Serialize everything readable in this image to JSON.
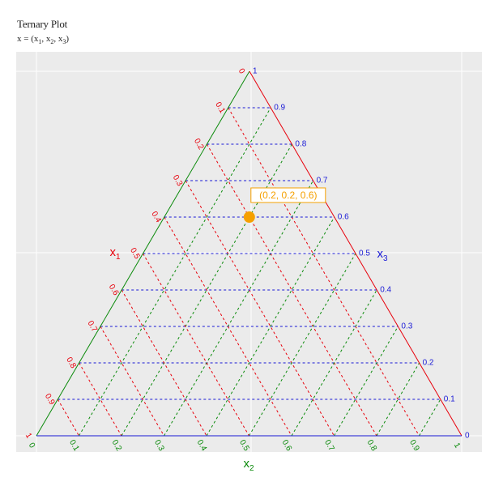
{
  "title": "Ternary Plot",
  "subtitle": "x = (x₁, x₂, x₃)",
  "chart_data": {
    "type": "ternary-scatter",
    "axes": {
      "x1": {
        "label": "x1",
        "color": "#e8000b"
      },
      "x2": {
        "label": "x2",
        "color": "#0a8a0a"
      },
      "x3": {
        "label": "x3",
        "color": "#1a1ad6"
      }
    },
    "ticks": {
      "x1": [
        "0",
        "0.1",
        "0.2",
        "0.3",
        "0.4",
        "0.5",
        "0.6",
        "0.7",
        "0.8",
        "0.9",
        "1"
      ],
      "x2": [
        "0",
        "0.1",
        "0.2",
        "0.3",
        "0.4",
        "0.5",
        "0.6",
        "0.7",
        "0.8",
        "0.9",
        "1"
      ],
      "x3": [
        "0",
        "0.1",
        "0.2",
        "0.3",
        "0.4",
        "0.5",
        "0.6",
        "0.7",
        "0.8",
        "0.9",
        "1"
      ]
    },
    "grid_step": 0.1,
    "points": [
      {
        "x1": 0.2,
        "x2": 0.2,
        "x3": 0.6,
        "label": "(0.2, 0.2, 0.6)",
        "color": "#f5a000"
      }
    ],
    "panel_background": "#ebebeb"
  }
}
